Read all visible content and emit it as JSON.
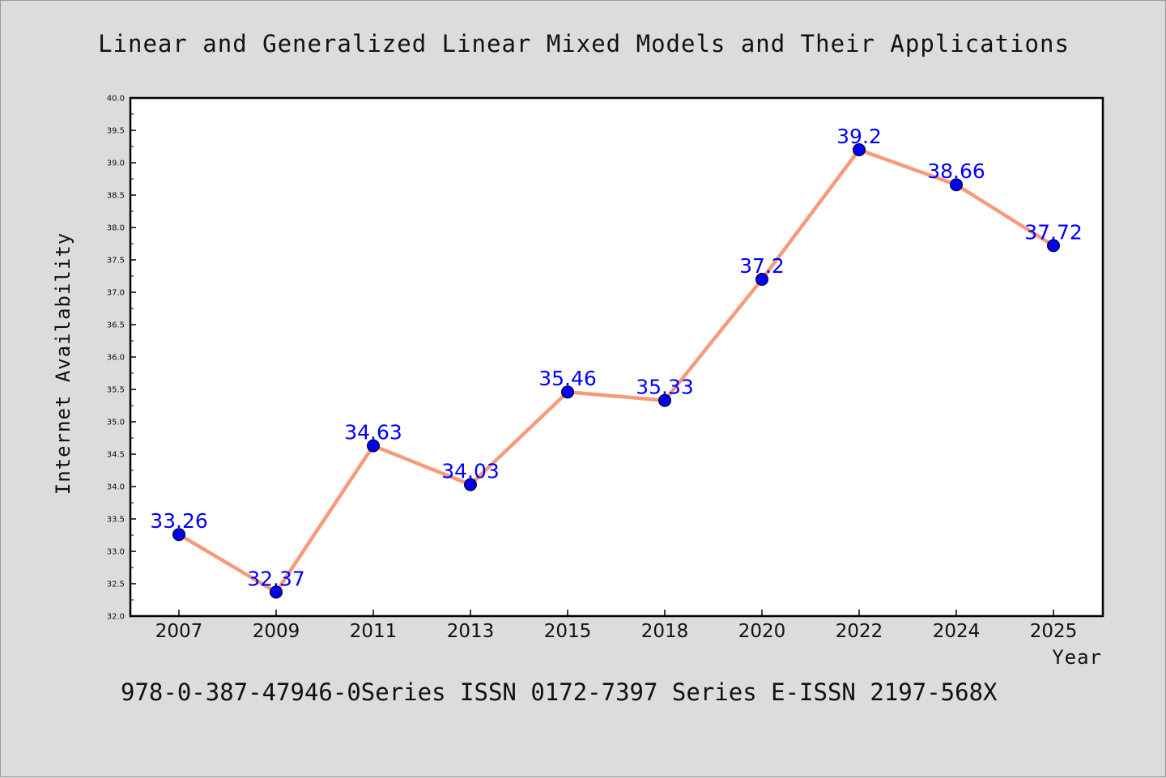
{
  "chart_data": {
    "type": "line",
    "title": "Linear and Generalized Linear Mixed Models and Their Applications",
    "xlabel": "Year",
    "ylabel": "Internet Availability",
    "categories": [
      "2007",
      "2009",
      "2011",
      "2013",
      "2015",
      "2018",
      "2020",
      "2022",
      "2024",
      "2025"
    ],
    "series": [
      {
        "values": [
          33.26,
          32.37,
          34.63,
          34.03,
          35.46,
          35.33,
          37.2,
          39.2,
          38.66,
          37.72
        ],
        "labels": [
          "33.26",
          "32.37",
          "34.63",
          "34.03",
          "35.46",
          "35.33",
          "37.2",
          "39.2",
          "38.66",
          "37.72"
        ],
        "line_color": "#f59b7a",
        "marker_color": "#0000ee"
      }
    ],
    "ylim": [
      32.0,
      40.0
    ],
    "yticks": [
      "32.0",
      "32.5",
      "33.0",
      "33.5",
      "34.0",
      "34.5",
      "35.0",
      "35.5",
      "36.0",
      "36.5",
      "37.0",
      "37.5",
      "38.0",
      "38.5",
      "39.0",
      "39.5",
      "40.0"
    ],
    "grid": false,
    "legend": "none"
  },
  "footer": "978-0-387-47946-0Series ISSN 0172-7397 Series E-ISSN 2197-568X"
}
